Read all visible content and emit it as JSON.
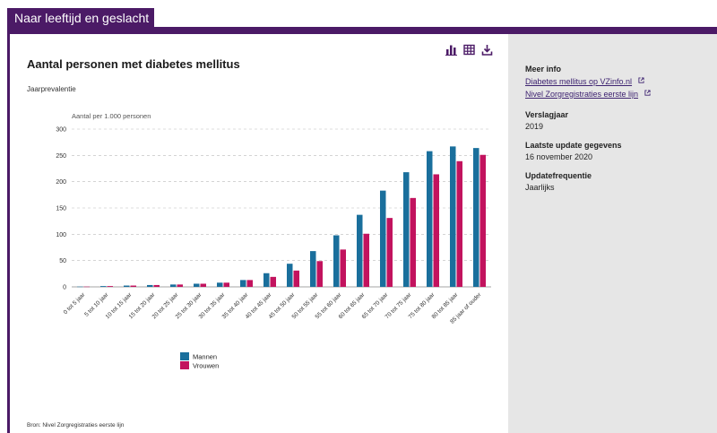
{
  "tab": {
    "label": "Naar leeftijd en geslacht"
  },
  "toolbar": {
    "bar_icon": "bar-chart-icon",
    "table_icon": "table-icon",
    "download_icon": "download-icon"
  },
  "colors": {
    "mannen": "#1a6f9c",
    "vrouwen": "#c2135e",
    "accent": "#4b1a66"
  },
  "chart_data": {
    "type": "bar",
    "title": "Aantal personen met diabetes mellitus",
    "subtitle": "Jaarprevalentie",
    "ylabel": "Aantal per 1.000 personen",
    "xlabel": "",
    "ylim": [
      0,
      300
    ],
    "yticks": [
      0,
      50,
      100,
      150,
      200,
      250,
      300
    ],
    "grid": true,
    "legend_position": "bottom-left",
    "categories": [
      "0 tot 5 jaar",
      "5 tot 10 jaar",
      "10 tot 15 jaar",
      "15 tot 20 jaar",
      "20 tot 25 jaar",
      "25 tot 30 jaar",
      "30 tot 35 jaar",
      "35 tot 40 jaar",
      "40 tot 45 jaar",
      "45 tot 50 jaar",
      "50 tot 55 jaar",
      "55 tot 60 jaar",
      "60 tot 65 jaar",
      "65 tot 70 jaar",
      "70 tot 75 jaar",
      "75 tot 80 jaar",
      "80 tot 85 jaar",
      "85 jaar of ouder"
    ],
    "series": [
      {
        "name": "Mannen",
        "values": [
          0.5,
          1.5,
          2.5,
          3.5,
          4.5,
          6,
          8,
          13,
          26,
          44,
          68,
          98,
          137,
          183,
          218,
          258,
          267,
          264
        ]
      },
      {
        "name": "Vrouwen",
        "values": [
          0.5,
          1.5,
          2.5,
          3.5,
          4.5,
          6,
          8,
          13,
          19,
          31,
          49,
          71,
          101,
          131,
          169,
          214,
          239,
          251
        ]
      }
    ],
    "source": "Bron: Nivel Zorgregistraties eerste lijn"
  },
  "sidebar": {
    "meer_info_label": "Meer info",
    "links": [
      {
        "label": "Diabetes mellitus op VZinfo.nl"
      },
      {
        "label": "Nivel Zorgregistraties eerste lijn"
      }
    ],
    "verslagjaar_label": "Verslagjaar",
    "verslagjaar_value": "2019",
    "update_label": "Laatste update gegevens",
    "update_value": "16 november 2020",
    "freq_label": "Updatefrequentie",
    "freq_value": "Jaarlijks"
  }
}
